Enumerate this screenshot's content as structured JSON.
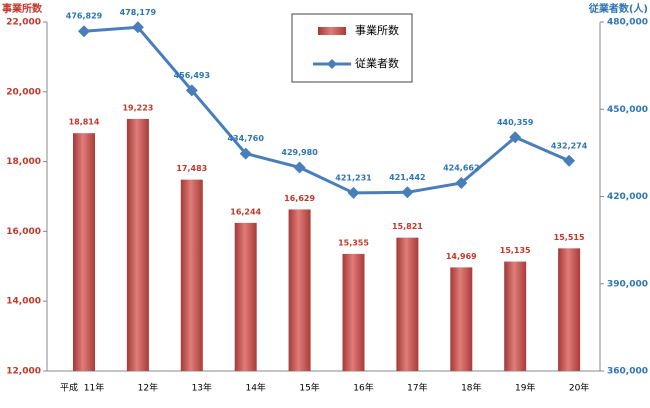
{
  "chart_data": {
    "type": "bar-line",
    "ylabel": "事業所数",
    "y2label": "従業者数(人)",
    "xlabel": "平成",
    "categories": [
      "11年",
      "12年",
      "13年",
      "14年",
      "15年",
      "16年",
      "17年",
      "18年",
      "19年",
      "20年"
    ],
    "series": [
      {
        "name": "事業所数",
        "type": "bar",
        "color": "#c0504d",
        "values": [
          18814,
          19223,
          17483,
          16244,
          16629,
          15355,
          15821,
          14969,
          15135,
          15515
        ],
        "value_labels": [
          "18,814",
          "19,223",
          "17,483",
          "16,244",
          "16,629",
          "15,355",
          "15,821",
          "14,969",
          "15,135",
          "15,515"
        ]
      },
      {
        "name": "従業者数",
        "type": "line",
        "axis": "y2",
        "color": "#4a7ebb",
        "values": [
          476829,
          478179,
          456493,
          434760,
          429980,
          421231,
          421442,
          424662,
          440359,
          432274
        ],
        "value_labels": [
          "476,829",
          "478,179",
          "456,493",
          "434,760",
          "429,980",
          "421,231",
          "421,442",
          "424,662",
          "440,359",
          "432,274"
        ]
      }
    ],
    "ylim": [
      12000,
      22000
    ],
    "yticks": [
      {
        "value": 12000,
        "label": "12,000"
      },
      {
        "value": 14000,
        "label": "14,000"
      },
      {
        "value": 16000,
        "label": "16,000"
      },
      {
        "value": 18000,
        "label": "18,000"
      },
      {
        "value": 20000,
        "label": "20,000"
      },
      {
        "value": 22000,
        "label": "22,000"
      }
    ],
    "y2lim": [
      360000,
      480000
    ],
    "y2ticks": [
      {
        "value": 360000,
        "label": "360,000"
      },
      {
        "value": 390000,
        "label": "390,000"
      },
      {
        "value": 420000,
        "label": "420,000"
      },
      {
        "value": 450000,
        "label": "450,000"
      },
      {
        "value": 480000,
        "label": "480,000"
      }
    ]
  }
}
